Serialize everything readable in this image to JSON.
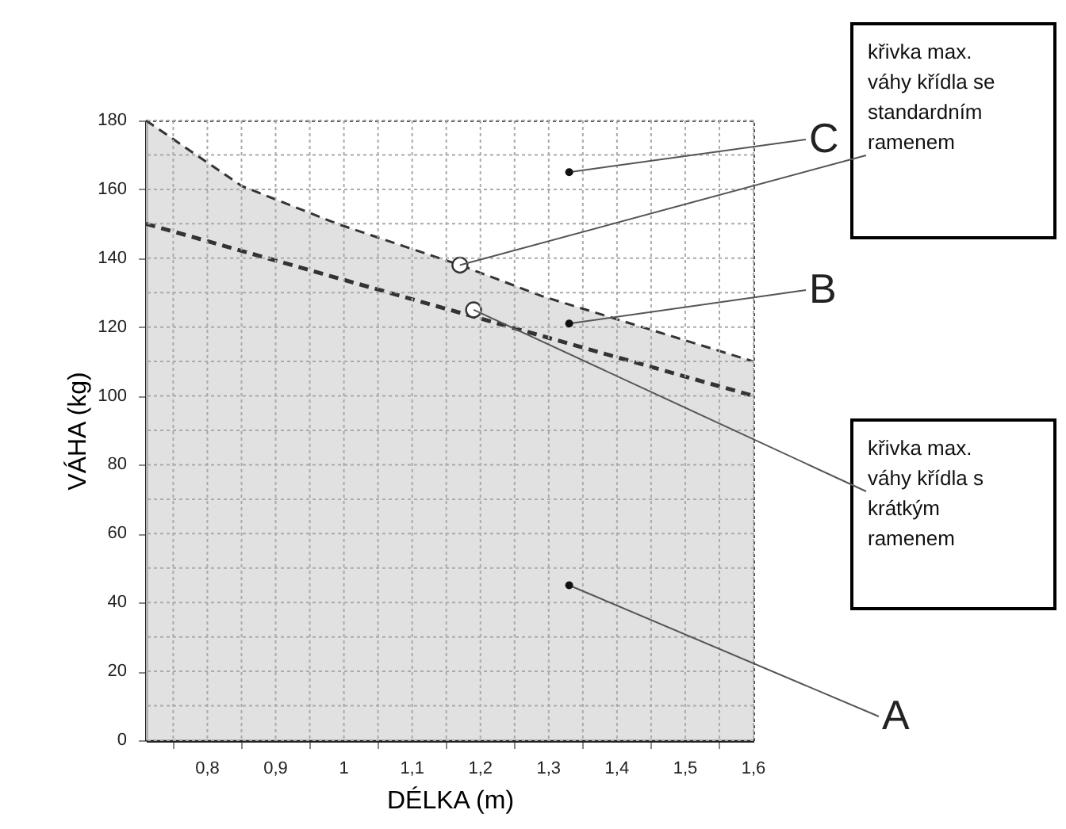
{
  "chart_data": {
    "type": "line",
    "xlabel": "DÉLKA (m)",
    "ylabel": "VÁHA (kg)",
    "series": [
      {
        "type": "area",
        "color": "#d9d9db",
        "line_style": "dashed",
        "x": [
          0.71,
          0.85,
          0.99,
          1.17,
          1.29,
          1.6
        ],
        "values": [
          180,
          161,
          150,
          138,
          129,
          110
        ]
      },
      {
        "color": "#333333",
        "line_style": "dashed",
        "x": [
          0.71,
          1.6
        ],
        "values": [
          150,
          100
        ]
      },
      {
        "type": "scatter",
        "color": "#333333",
        "marker": "circle",
        "x": [
          1.17,
          1.19
        ],
        "values": [
          138,
          125
        ]
      }
    ],
    "xlim": [
      0.71,
      1.6
    ],
    "xticks": [
      {
        "value": 0.75,
        "label": null
      },
      {
        "value": 0.8,
        "label": "0,8"
      },
      {
        "value": 0.85,
        "label": null
      },
      {
        "value": 0.9,
        "label": "0,9"
      },
      {
        "value": 0.95,
        "label": null
      },
      1,
      {
        "value": 1.05,
        "label": null
      },
      {
        "value": 1.1,
        "label": "1,1"
      },
      {
        "value": 1.15,
        "label": null
      },
      {
        "value": 1.2,
        "label": "1,2"
      },
      {
        "value": 1.25,
        "label": null
      },
      {
        "value": 1.3,
        "label": "1,3"
      },
      {
        "value": 1.35,
        "label": null
      },
      {
        "value": 1.4,
        "label": "1,4"
      },
      {
        "value": 1.45,
        "label": null
      },
      {
        "value": 1.5,
        "label": "1,5"
      },
      {
        "value": 1.55,
        "label": null
      },
      {
        "value": 1.6,
        "label": "1,6"
      }
    ],
    "ylim": [
      0,
      180
    ],
    "yticks": [
      0,
      {
        "value": 10,
        "label": null
      },
      20,
      {
        "value": 30,
        "label": null
      },
      40,
      {
        "value": 50,
        "label": null
      },
      60,
      {
        "value": 70,
        "label": null
      },
      80,
      {
        "value": 90,
        "label": null
      },
      100,
      {
        "value": 110,
        "label": null
      },
      120,
      {
        "value": 130,
        "label": null
      },
      140,
      {
        "value": 150,
        "label": null
      },
      160,
      {
        "value": 170,
        "label": null
      },
      180
    ],
    "grid": true,
    "annotations": [
      {
        "text": "C",
        "x": 1.33,
        "y": 165
      },
      {
        "text": "křivka  max.\nváhy křídla se\nstandardním\nramenem",
        "x": 1.17,
        "y": 138
      },
      {
        "text": "B",
        "x": 1.33,
        "y": 121
      },
      {
        "text": "křivka  max.\nváhy křídla s\nkrátkým\nramenem",
        "x": 1.19,
        "y": 125
      },
      {
        "text": "A",
        "x": 1.33,
        "y": 45
      }
    ]
  }
}
